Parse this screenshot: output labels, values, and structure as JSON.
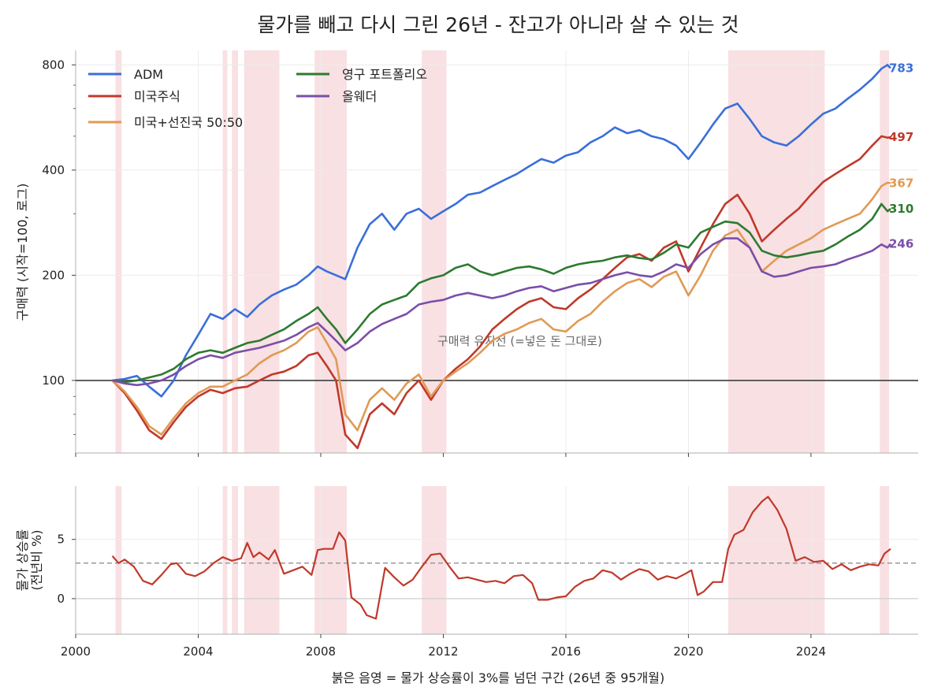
{
  "chart_data": [
    {
      "type": "line",
      "title": "물가를 빼고 다시 그린 26년 - 잔고가 아니라 살 수 있는 것",
      "ylabel": "구매력 (시작=100, 로그)",
      "y_scale": "log",
      "ylim": [
        62,
        880
      ],
      "xlim": [
        2000,
        2027.5
      ],
      "x_ticks": [
        2000,
        2004,
        2008,
        2012,
        2016,
        2020,
        2024
      ],
      "y_ticks": [
        100,
        200,
        400,
        800
      ],
      "grid": true,
      "legend_position": "upper-left",
      "baseline": {
        "value": 100,
        "label": "구매력 유지선 (=넣은 돈 그대로)"
      },
      "shaded_periods": [
        [
          2001.3,
          2001.5
        ],
        [
          2004.8,
          2004.95
        ],
        [
          2005.1,
          2005.3
        ],
        [
          2005.5,
          2006.65
        ],
        [
          2007.8,
          2008.85
        ],
        [
          2011.3,
          2012.1
        ],
        [
          2021.3,
          2024.45
        ],
        [
          2026.25,
          2026.55
        ]
      ],
      "series": [
        {
          "name": "ADM",
          "color": "#3a6fd8",
          "end_label": "783",
          "x": [
            2001.2,
            2001.6,
            2002.0,
            2002.4,
            2002.8,
            2003.2,
            2003.6,
            2004.0,
            2004.4,
            2004.8,
            2005.2,
            2005.6,
            2006.0,
            2006.4,
            2006.8,
            2007.2,
            2007.6,
            2007.9,
            2008.2,
            2008.5,
            2008.8,
            2009.2,
            2009.6,
            2010.0,
            2010.4,
            2010.8,
            2011.2,
            2011.6,
            2012.0,
            2012.4,
            2012.8,
            2013.2,
            2013.6,
            2014.0,
            2014.4,
            2014.8,
            2015.2,
            2015.6,
            2016.0,
            2016.4,
            2016.8,
            2017.2,
            2017.6,
            2018.0,
            2018.4,
            2018.8,
            2019.2,
            2019.6,
            2020.0,
            2020.4,
            2020.8,
            2021.2,
            2021.6,
            2022.0,
            2022.4,
            2022.8,
            2023.2,
            2023.6,
            2024.0,
            2024.4,
            2024.8,
            2025.2,
            2025.6,
            2026.0,
            2026.3,
            2026.5,
            2026.6
          ],
          "y": [
            100,
            101,
            103,
            96,
            90,
            100,
            118,
            135,
            155,
            150,
            160,
            152,
            165,
            175,
            182,
            188,
            200,
            212,
            205,
            200,
            195,
            240,
            280,
            300,
            270,
            300,
            310,
            290,
            305,
            320,
            340,
            345,
            360,
            375,
            390,
            410,
            430,
            420,
            440,
            450,
            480,
            500,
            530,
            510,
            520,
            500,
            490,
            470,
            430,
            480,
            540,
            600,
            620,
            560,
            500,
            480,
            470,
            500,
            540,
            580,
            600,
            640,
            680,
            730,
            780,
            800,
            783
          ]
        },
        {
          "name": "미국주식",
          "color": "#c0392b",
          "end_label": "497",
          "x": [
            2001.2,
            2001.6,
            2002.0,
            2002.4,
            2002.8,
            2003.2,
            2003.6,
            2004.0,
            2004.4,
            2004.8,
            2005.2,
            2005.6,
            2006.0,
            2006.4,
            2006.8,
            2007.2,
            2007.6,
            2007.9,
            2008.2,
            2008.5,
            2008.8,
            2009.2,
            2009.6,
            2010.0,
            2010.4,
            2010.8,
            2011.2,
            2011.6,
            2012.0,
            2012.4,
            2012.8,
            2013.2,
            2013.6,
            2014.0,
            2014.4,
            2014.8,
            2015.2,
            2015.6,
            2016.0,
            2016.4,
            2016.8,
            2017.2,
            2017.6,
            2018.0,
            2018.4,
            2018.8,
            2019.2,
            2019.6,
            2020.0,
            2020.4,
            2020.8,
            2021.2,
            2021.6,
            2022.0,
            2022.4,
            2022.8,
            2023.2,
            2023.6,
            2024.0,
            2024.4,
            2024.8,
            2025.2,
            2025.6,
            2026.0,
            2026.3,
            2026.5,
            2026.6
          ],
          "y": [
            100,
            92,
            82,
            72,
            68,
            76,
            84,
            90,
            94,
            92,
            95,
            96,
            100,
            104,
            106,
            110,
            118,
            120,
            110,
            100,
            70,
            64,
            80,
            86,
            80,
            92,
            100,
            88,
            100,
            108,
            115,
            125,
            140,
            150,
            160,
            168,
            172,
            162,
            160,
            172,
            182,
            195,
            210,
            225,
            230,
            220,
            240,
            250,
            205,
            240,
            280,
            320,
            340,
            300,
            250,
            270,
            290,
            310,
            340,
            370,
            390,
            410,
            430,
            470,
            500,
            495,
            497
          ]
        },
        {
          "name": "미국+선진국 50:50",
          "color": "#e09a55",
          "end_label": "367",
          "x": [
            2001.2,
            2001.6,
            2002.0,
            2002.4,
            2002.8,
            2003.2,
            2003.6,
            2004.0,
            2004.4,
            2004.8,
            2005.2,
            2005.6,
            2006.0,
            2006.4,
            2006.8,
            2007.2,
            2007.6,
            2007.9,
            2008.2,
            2008.5,
            2008.8,
            2009.2,
            2009.6,
            2010.0,
            2010.4,
            2010.8,
            2011.2,
            2011.6,
            2012.0,
            2012.4,
            2012.8,
            2013.2,
            2013.6,
            2014.0,
            2014.4,
            2014.8,
            2015.2,
            2015.6,
            2016.0,
            2016.4,
            2016.8,
            2017.2,
            2017.6,
            2018.0,
            2018.4,
            2018.8,
            2019.2,
            2019.6,
            2020.0,
            2020.4,
            2020.8,
            2021.2,
            2021.6,
            2022.0,
            2022.4,
            2022.8,
            2023.2,
            2023.6,
            2024.0,
            2024.4,
            2024.8,
            2025.2,
            2025.6,
            2026.0,
            2026.3,
            2026.5,
            2026.6
          ],
          "y": [
            100,
            93,
            84,
            74,
            70,
            78,
            86,
            92,
            96,
            96,
            100,
            104,
            112,
            118,
            122,
            128,
            138,
            142,
            128,
            115,
            80,
            72,
            88,
            95,
            88,
            98,
            104,
            90,
            100,
            106,
            112,
            120,
            130,
            136,
            140,
            146,
            150,
            140,
            138,
            148,
            155,
            168,
            180,
            190,
            195,
            185,
            198,
            205,
            175,
            200,
            235,
            260,
            270,
            240,
            205,
            220,
            235,
            245,
            255,
            270,
            280,
            290,
            300,
            330,
            360,
            368,
            367
          ]
        },
        {
          "name": "영구 포트폴리오",
          "color": "#2d7a30",
          "end_label": "310",
          "x": [
            2001.2,
            2001.6,
            2002.0,
            2002.4,
            2002.8,
            2003.2,
            2003.6,
            2004.0,
            2004.4,
            2004.8,
            2005.2,
            2005.6,
            2006.0,
            2006.4,
            2006.8,
            2007.2,
            2007.6,
            2007.9,
            2008.2,
            2008.5,
            2008.8,
            2009.2,
            2009.6,
            2010.0,
            2010.4,
            2010.8,
            2011.2,
            2011.6,
            2012.0,
            2012.4,
            2012.8,
            2013.2,
            2013.6,
            2014.0,
            2014.4,
            2014.8,
            2015.2,
            2015.6,
            2016.0,
            2016.4,
            2016.8,
            2017.2,
            2017.6,
            2018.0,
            2018.4,
            2018.8,
            2019.2,
            2019.6,
            2020.0,
            2020.4,
            2020.8,
            2021.2,
            2021.6,
            2022.0,
            2022.4,
            2022.8,
            2023.2,
            2023.6,
            2024.0,
            2024.4,
            2024.8,
            2025.2,
            2025.6,
            2026.0,
            2026.3,
            2026.5,
            2026.6
          ],
          "y": [
            100,
            99,
            100,
            102,
            104,
            108,
            115,
            120,
            122,
            120,
            124,
            128,
            130,
            135,
            140,
            148,
            155,
            162,
            150,
            140,
            128,
            140,
            155,
            165,
            170,
            175,
            190,
            196,
            200,
            210,
            215,
            205,
            200,
            205,
            210,
            212,
            208,
            202,
            210,
            215,
            218,
            220,
            225,
            228,
            224,
            222,
            232,
            245,
            240,
            265,
            275,
            285,
            282,
            265,
            235,
            228,
            225,
            228,
            232,
            235,
            245,
            258,
            270,
            290,
            320,
            305,
            310
          ]
        },
        {
          "name": "올웨더",
          "color": "#7b4ea8",
          "end_label": "246",
          "x": [
            2001.2,
            2001.6,
            2002.0,
            2002.4,
            2002.8,
            2003.2,
            2003.6,
            2004.0,
            2004.4,
            2004.8,
            2005.2,
            2005.6,
            2006.0,
            2006.4,
            2006.8,
            2007.2,
            2007.6,
            2007.9,
            2008.2,
            2008.5,
            2008.8,
            2009.2,
            2009.6,
            2010.0,
            2010.4,
            2010.8,
            2011.2,
            2011.6,
            2012.0,
            2012.4,
            2012.8,
            2013.2,
            2013.6,
            2014.0,
            2014.4,
            2014.8,
            2015.2,
            2015.6,
            2016.0,
            2016.4,
            2016.8,
            2017.2,
            2017.6,
            2018.0,
            2018.4,
            2018.8,
            2019.2,
            2019.6,
            2020.0,
            2020.4,
            2020.8,
            2021.2,
            2021.6,
            2022.0,
            2022.4,
            2022.8,
            2023.2,
            2023.6,
            2024.0,
            2024.4,
            2024.8,
            2025.2,
            2025.6,
            2026.0,
            2026.3,
            2026.5,
            2026.6
          ],
          "y": [
            100,
            98,
            97,
            98,
            100,
            104,
            110,
            115,
            118,
            116,
            120,
            122,
            124,
            127,
            130,
            135,
            142,
            146,
            138,
            130,
            122,
            128,
            138,
            145,
            150,
            155,
            165,
            168,
            170,
            175,
            178,
            175,
            172,
            175,
            180,
            184,
            186,
            180,
            184,
            188,
            190,
            195,
            200,
            204,
            200,
            198,
            205,
            215,
            210,
            230,
            245,
            255,
            255,
            240,
            205,
            198,
            200,
            205,
            210,
            212,
            215,
            222,
            228,
            235,
            245,
            240,
            246
          ]
        }
      ]
    },
    {
      "type": "line",
      "ylabel": "물가 상승률\n(전년비 %)",
      "xlabel": "붉은 음영 = 물가 상승률이 3%를 넘던 구간 (26년 중 95개월)",
      "ylim": [
        -3,
        9.5
      ],
      "y_ticks": [
        0,
        5
      ],
      "x_ticks": [
        2000,
        2004,
        2008,
        2012,
        2016,
        2020,
        2024
      ],
      "threshold": 3,
      "grid": true,
      "series": [
        {
          "name": "",
          "color": "#c0392b",
          "x": [
            2001.2,
            2001.4,
            2001.6,
            2001.9,
            2002.2,
            2002.5,
            2002.8,
            2003.1,
            2003.3,
            2003.6,
            2003.9,
            2004.2,
            2004.5,
            2004.8,
            2005.1,
            2005.4,
            2005.6,
            2005.8,
            2006.0,
            2006.3,
            2006.5,
            2006.8,
            2007.1,
            2007.4,
            2007.7,
            2007.9,
            2008.1,
            2008.4,
            2008.6,
            2008.8,
            2009.0,
            2009.3,
            2009.5,
            2009.8,
            2010.1,
            2010.4,
            2010.7,
            2011.0,
            2011.3,
            2011.6,
            2011.9,
            2012.2,
            2012.5,
            2012.8,
            2013.1,
            2013.4,
            2013.7,
            2014.0,
            2014.3,
            2014.6,
            2014.9,
            2015.1,
            2015.4,
            2015.7,
            2016.0,
            2016.3,
            2016.6,
            2016.9,
            2017.2,
            2017.5,
            2017.8,
            2018.1,
            2018.4,
            2018.7,
            2019.0,
            2019.3,
            2019.6,
            2019.9,
            2020.1,
            2020.3,
            2020.5,
            2020.8,
            2021.1,
            2021.3,
            2021.5,
            2021.8,
            2022.1,
            2022.4,
            2022.6,
            2022.9,
            2023.2,
            2023.5,
            2023.8,
            2024.1,
            2024.4,
            2024.7,
            2025.0,
            2025.3,
            2025.6,
            2025.9,
            2026.2,
            2026.4,
            2026.6
          ],
          "y": [
            3.6,
            3.0,
            3.3,
            2.7,
            1.5,
            1.2,
            2.0,
            2.9,
            3.0,
            2.1,
            1.9,
            2.3,
            3.0,
            3.5,
            3.2,
            3.4,
            4.7,
            3.5,
            3.9,
            3.3,
            4.1,
            2.1,
            2.4,
            2.7,
            2.0,
            4.1,
            4.2,
            4.2,
            5.6,
            4.9,
            0.1,
            -0.5,
            -1.4,
            -1.7,
            2.6,
            1.8,
            1.1,
            1.6,
            2.7,
            3.7,
            3.8,
            2.7,
            1.7,
            1.8,
            1.6,
            1.4,
            1.5,
            1.3,
            1.9,
            2.0,
            1.3,
            -0.1,
            -0.1,
            0.1,
            0.2,
            1.0,
            1.5,
            1.7,
            2.4,
            2.2,
            1.6,
            2.1,
            2.5,
            2.3,
            1.6,
            1.9,
            1.7,
            2.1,
            2.4,
            0.3,
            0.6,
            1.4,
            1.4,
            4.2,
            5.4,
            5.8,
            7.3,
            8.2,
            8.6,
            7.5,
            5.9,
            3.2,
            3.5,
            3.1,
            3.2,
            2.5,
            2.9,
            2.4,
            2.7,
            2.9,
            2.8,
            3.8,
            4.2
          ]
        }
      ]
    }
  ]
}
